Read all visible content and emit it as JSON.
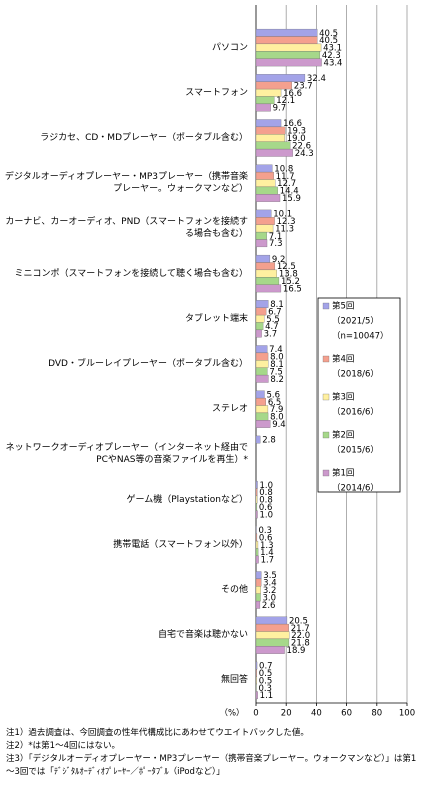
{
  "chart_data": {
    "type": "bar",
    "orientation": "horizontal",
    "categories": [
      "パソコン",
      "スマートフォン",
      "ラジカセ、CD・MDプレーヤー（ポータブル含む）",
      "デジタルオーディオプレーヤー・MP3プレーヤー（携帯音楽プレーヤー。ウォークマンなど）",
      "カーナビ、カーオーディオ、PND（スマートフォンを接続する場合も含む）",
      "ミニコンポ（スマートフォンを接続して聴く場合も含む）",
      "タブレット端末",
      "DVD・ブルーレイプレーヤー（ポータブル含む）",
      "ステレオ",
      "ネットワークオーディオプレーヤー（インターネット経由でPCやNAS等の音楽ファイルを再生）*",
      "ゲーム機（Playstationなど）",
      "携帯電話（スマートフォン以外）",
      "その他",
      "自宅で音楽は聴かない",
      "無回答"
    ],
    "series": [
      {
        "name": "第5回",
        "details": [
          "（2021/5）",
          "（n=10047）"
        ],
        "color": "#a3a3e8",
        "values": [
          40.5,
          32.4,
          16.6,
          10.8,
          10.1,
          9.2,
          8.1,
          7.4,
          5.6,
          2.8,
          1.0,
          0.3,
          3.5,
          20.5,
          0.7
        ],
        "value_labels": [
          "40.5",
          "32.4",
          "16.6",
          "10.8",
          "10.1",
          "9.2",
          "8.1",
          "7.4",
          "5.6",
          "2.8",
          "1.0",
          "0.3",
          "3.5",
          "20.5",
          "0.7"
        ]
      },
      {
        "name": "第4回",
        "details": [
          "（2018/6）"
        ],
        "color": "#f4a08e",
        "values": [
          40.5,
          23.7,
          19.3,
          11.7,
          12.3,
          12.5,
          6.7,
          8.0,
          6.5,
          null,
          0.8,
          0.6,
          3.4,
          21.7,
          0.5
        ],
        "value_labels": [
          "40.5",
          "23.7",
          "19.3",
          "11.7",
          "12.3",
          "12.5",
          "6.7",
          "8.0",
          "6.5",
          null,
          "0.8",
          "0.6",
          "3.4",
          "21.7",
          "0.5"
        ]
      },
      {
        "name": "第3回",
        "details": [
          "（2016/6）"
        ],
        "color": "#fff0a0",
        "values": [
          43.1,
          16.6,
          19.0,
          12.7,
          11.3,
          13.8,
          5.5,
          8.1,
          7.9,
          null,
          0.8,
          1.3,
          3.2,
          22.0,
          0.5
        ],
        "value_labels": [
          "43.1",
          "16.6",
          "19.0",
          "12.7",
          "11.3",
          "13.8",
          "5.5",
          "8.1",
          "7.9",
          null,
          "0.8",
          "1.3",
          "3.2",
          "22.0",
          "0.5"
        ]
      },
      {
        "name": "第2回",
        "details": [
          "（2015/6）"
        ],
        "color": "#a6d88a",
        "values": [
          42.3,
          12.1,
          22.6,
          14.4,
          7.1,
          15.2,
          4.7,
          7.5,
          8.0,
          null,
          0.6,
          1.4,
          3.0,
          21.8,
          0.3
        ],
        "value_labels": [
          "42.3",
          "12.1",
          "22.6",
          "14.4",
          "7.1",
          "15.2",
          "4.7",
          "7.5",
          "8.0",
          null,
          "0.6",
          "1.4",
          "3.0",
          "21.8",
          "0.3"
        ]
      },
      {
        "name": "第1回",
        "details": [
          "（2014/6）"
        ],
        "color": "#cc99cc",
        "values": [
          43.4,
          9.7,
          24.3,
          15.9,
          7.3,
          16.5,
          3.7,
          8.2,
          9.4,
          null,
          1.0,
          1.7,
          2.6,
          18.9,
          1.1
        ],
        "value_labels": [
          "43.4",
          "9.7",
          "24.3",
          "15.9",
          "7.3",
          "16.5",
          "3.7",
          "8.2",
          "9.4",
          null,
          "1.0",
          "1.7",
          "2.6",
          "18.9",
          "1.1"
        ]
      }
    ],
    "xlabel": "（%）",
    "xlim": [
      0,
      100
    ],
    "xticks": [
      0,
      20,
      40,
      60,
      80,
      100
    ],
    "grid": true,
    "legend": "right"
  },
  "notes": [
    "注1）過去調査は、今回調査の性年代構成比にあわせてウエイトバックした値。",
    "注2）*は第1～4回にはない。",
    "注3）「デジタルオーディオプレーヤー・MP3プレーヤー（携帯音楽プレーヤー。ウォークマンなど）」は第1～3回では「ﾃﾞｼﾞﾀﾙｵｰﾃﾞｨｵﾌﾟﾚｰﾔｰ／ﾎﾟｰﾀﾌﾞﾙ（iPodなど）」"
  ]
}
